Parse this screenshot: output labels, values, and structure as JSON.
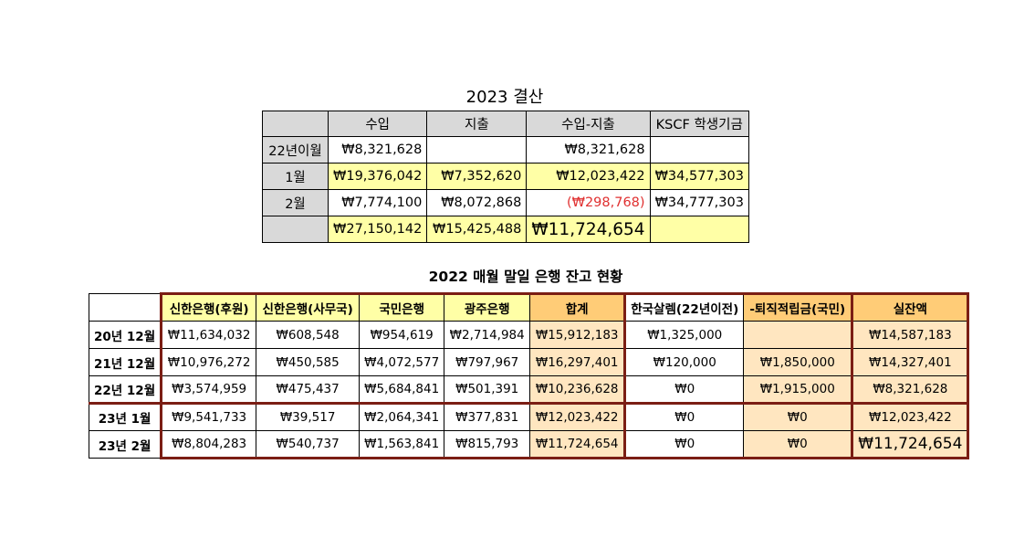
{
  "settlement": {
    "title": "2023 결산",
    "headers": [
      "",
      "수입",
      "지출",
      "수입-지출",
      "KSCF 학생기금"
    ],
    "rows": [
      {
        "label": "22년이월",
        "income": "₩8,321,628",
        "expense": "",
        "net": "₩8,321,628",
        "fund": ""
      },
      {
        "label": "1월",
        "income": "₩19,376,042",
        "expense": "₩7,352,620",
        "net": "₩12,023,422",
        "fund": "₩34,577,303"
      },
      {
        "label": "2월",
        "income": "₩7,774,100",
        "expense": "₩8,072,868",
        "net": "(₩298,768)",
        "fund": "₩34,777,303"
      },
      {
        "label": "",
        "income": "₩27,150,142",
        "expense": "₩15,425,488",
        "net": "₩11,724,654",
        "fund": ""
      }
    ]
  },
  "balances": {
    "title": "2022 매월 말일 은행 잔고 현황",
    "headers": [
      "",
      "신한은행(후원)",
      "신한은행(사무국)",
      "국민은행",
      "광주은행",
      "합계",
      "한국살렘(22년이전)",
      "-퇴직적립금(국민)",
      "실잔액"
    ],
    "rows": [
      {
        "label": "20년 12월",
        "cells": [
          "₩11,634,032",
          "₩608,548",
          "₩954,619",
          "₩2,714,984",
          "₩15,912,183",
          "₩1,325,000",
          "",
          "₩14,587,183"
        ]
      },
      {
        "label": "21년 12월",
        "cells": [
          "₩10,976,272",
          "₩450,585",
          "₩4,072,577",
          "₩797,967",
          "₩16,297,401",
          "₩120,000",
          "₩1,850,000",
          "₩14,327,401"
        ]
      },
      {
        "label": "22년 12월",
        "cells": [
          "₩3,574,959",
          "₩475,437",
          "₩5,684,841",
          "₩501,391",
          "₩10,236,628",
          "₩0",
          "₩1,915,000",
          "₩8,321,628"
        ]
      },
      {
        "label": "23년 1월",
        "cells": [
          "₩9,541,733",
          "₩39,517",
          "₩2,064,341",
          "₩377,831",
          "₩12,023,422",
          "₩0",
          "₩0",
          "₩12,023,422"
        ]
      },
      {
        "label": "23년 2월",
        "cells": [
          "₩8,804,283",
          "₩540,737",
          "₩1,563,841",
          "₩815,793",
          "₩11,724,654",
          "₩0",
          "₩0",
          "₩11,724,654"
        ]
      }
    ]
  }
}
